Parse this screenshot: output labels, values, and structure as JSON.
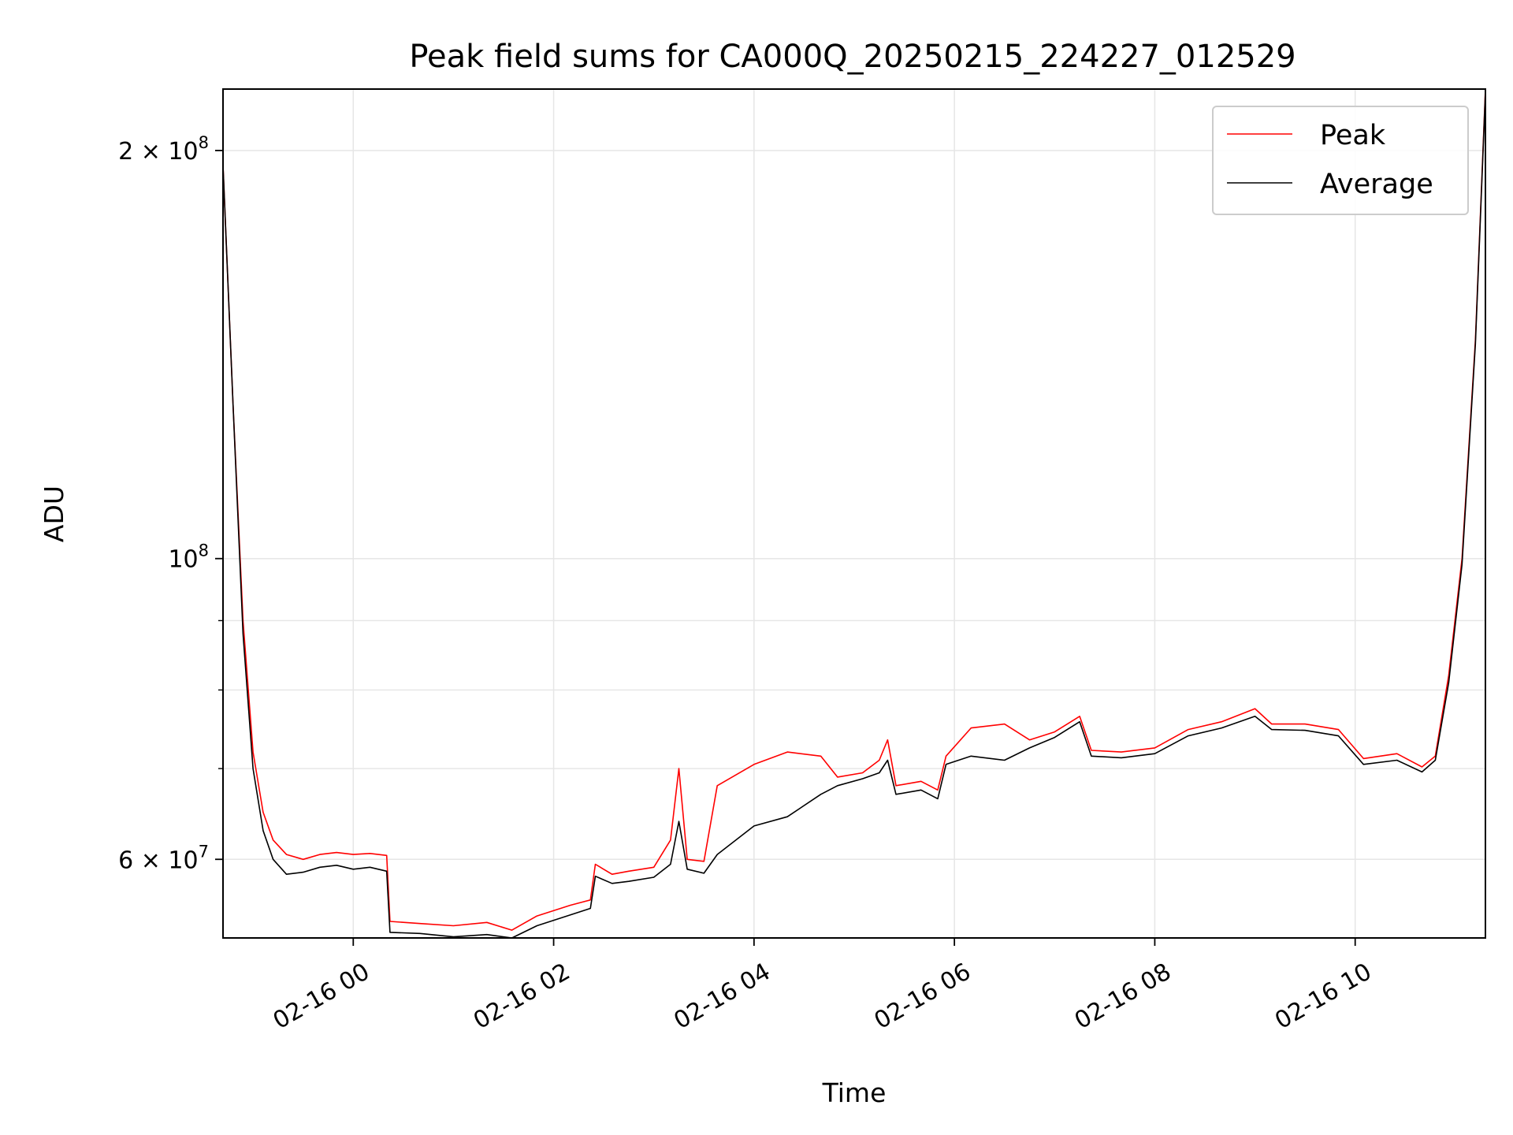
{
  "chart_data": {
    "type": "line",
    "title": "Peak field sums for CA000Q_20250215_224227_012529",
    "xlabel": "Time",
    "ylabel": "ADU",
    "yscale": "log",
    "xlim": [
      "2025-02-15 22:42",
      "2025-02-16 11:18"
    ],
    "ylim": [
      52500000,
      222000000
    ],
    "grid": true,
    "legend": "upper right",
    "x_ticks": [
      {
        "value": "2025-02-16 00:00",
        "label": "02-16 00"
      },
      {
        "value": "2025-02-16 02:00",
        "label": "02-16 02"
      },
      {
        "value": "2025-02-16 04:00",
        "label": "02-16 04"
      },
      {
        "value": "2025-02-16 06:00",
        "label": "02-16 06"
      },
      {
        "value": "2025-02-16 08:00",
        "label": "02-16 08"
      },
      {
        "value": "2025-02-16 10:00",
        "label": "02-16 10"
      }
    ],
    "y_ticks": [
      {
        "value": 200000000,
        "base": "2 × 10",
        "exp": "8"
      },
      {
        "value": 100000000,
        "base": "10",
        "exp": "8"
      },
      {
        "value": 60000000,
        "base": "6 × 10",
        "exp": "7"
      }
    ],
    "y_minor_ticks": [
      70000000,
      80000000,
      90000000
    ],
    "series": [
      {
        "name": "Peak",
        "color": "#ff0000",
        "points": [
          [
            "2025-02-15 22:42",
            195000000
          ],
          [
            "2025-02-15 22:48",
            130000000
          ],
          [
            "2025-02-15 22:54",
            90000000
          ],
          [
            "2025-02-15 23:00",
            72000000
          ],
          [
            "2025-02-15 23:06",
            65000000
          ],
          [
            "2025-02-15 23:12",
            62000000
          ],
          [
            "2025-02-15 23:20",
            60500000
          ],
          [
            "2025-02-15 23:30",
            60000000
          ],
          [
            "2025-02-15 23:40",
            60500000
          ],
          [
            "2025-02-15 23:50",
            60700000
          ],
          [
            "2025-02-16 00:00",
            60500000
          ],
          [
            "2025-02-16 00:10",
            60600000
          ],
          [
            "2025-02-16 00:20",
            60400000
          ],
          [
            "2025-02-16 00:22",
            54000000
          ],
          [
            "2025-02-16 00:40",
            53800000
          ],
          [
            "2025-02-16 01:00",
            53600000
          ],
          [
            "2025-02-16 01:20",
            53900000
          ],
          [
            "2025-02-16 01:35",
            53200000
          ],
          [
            "2025-02-16 01:50",
            54500000
          ],
          [
            "2025-02-16 02:10",
            55500000
          ],
          [
            "2025-02-16 02:22",
            56000000
          ],
          [
            "2025-02-16 02:25",
            59500000
          ],
          [
            "2025-02-16 02:35",
            58500000
          ],
          [
            "2025-02-16 02:45",
            58800000
          ],
          [
            "2025-02-16 03:00",
            59200000
          ],
          [
            "2025-02-16 03:10",
            62000000
          ],
          [
            "2025-02-16 03:15",
            70000000
          ],
          [
            "2025-02-16 03:20",
            60000000
          ],
          [
            "2025-02-16 03:30",
            59800000
          ],
          [
            "2025-02-16 03:38",
            68000000
          ],
          [
            "2025-02-16 04:00",
            70500000
          ],
          [
            "2025-02-16 04:20",
            72000000
          ],
          [
            "2025-02-16 04:40",
            71500000
          ],
          [
            "2025-02-16 04:50",
            69000000
          ],
          [
            "2025-02-16 05:05",
            69500000
          ],
          [
            "2025-02-16 05:15",
            71000000
          ],
          [
            "2025-02-16 05:20",
            73500000
          ],
          [
            "2025-02-16 05:25",
            68000000
          ],
          [
            "2025-02-16 05:40",
            68500000
          ],
          [
            "2025-02-16 05:50",
            67500000
          ],
          [
            "2025-02-16 05:55",
            71500000
          ],
          [
            "2025-02-16 06:10",
            75000000
          ],
          [
            "2025-02-16 06:30",
            75500000
          ],
          [
            "2025-02-16 06:45",
            73500000
          ],
          [
            "2025-02-16 07:00",
            74500000
          ],
          [
            "2025-02-16 07:15",
            76500000
          ],
          [
            "2025-02-16 07:22",
            72200000
          ],
          [
            "2025-02-16 07:40",
            72000000
          ],
          [
            "2025-02-16 08:00",
            72500000
          ],
          [
            "2025-02-16 08:20",
            74800000
          ],
          [
            "2025-02-16 08:40",
            75800000
          ],
          [
            "2025-02-16 09:00",
            77500000
          ],
          [
            "2025-02-16 09:10",
            75500000
          ],
          [
            "2025-02-16 09:30",
            75500000
          ],
          [
            "2025-02-16 09:50",
            74800000
          ],
          [
            "2025-02-16 10:05",
            71200000
          ],
          [
            "2025-02-16 10:25",
            71800000
          ],
          [
            "2025-02-16 10:40",
            70200000
          ],
          [
            "2025-02-16 10:48",
            71500000
          ],
          [
            "2025-02-16 10:56",
            82000000
          ],
          [
            "2025-02-16 11:04",
            100000000
          ],
          [
            "2025-02-16 11:12",
            145000000
          ],
          [
            "2025-02-16 11:18",
            222000000
          ]
        ]
      },
      {
        "name": "Average",
        "color": "#000000",
        "points": [
          [
            "2025-02-15 22:42",
            195000000
          ],
          [
            "2025-02-15 22:48",
            130000000
          ],
          [
            "2025-02-15 22:54",
            88000000
          ],
          [
            "2025-02-15 23:00",
            70000000
          ],
          [
            "2025-02-15 23:06",
            63000000
          ],
          [
            "2025-02-15 23:12",
            60000000
          ],
          [
            "2025-02-15 23:20",
            58500000
          ],
          [
            "2025-02-15 23:30",
            58700000
          ],
          [
            "2025-02-15 23:40",
            59200000
          ],
          [
            "2025-02-15 23:50",
            59400000
          ],
          [
            "2025-02-16 00:00",
            59000000
          ],
          [
            "2025-02-16 00:10",
            59200000
          ],
          [
            "2025-02-16 00:20",
            58800000
          ],
          [
            "2025-02-16 00:22",
            53000000
          ],
          [
            "2025-02-16 00:40",
            52900000
          ],
          [
            "2025-02-16 01:00",
            52600000
          ],
          [
            "2025-02-16 01:20",
            52800000
          ],
          [
            "2025-02-16 01:35",
            52500000
          ],
          [
            "2025-02-16 01:50",
            53600000
          ],
          [
            "2025-02-16 02:10",
            54600000
          ],
          [
            "2025-02-16 02:22",
            55200000
          ],
          [
            "2025-02-16 02:25",
            58300000
          ],
          [
            "2025-02-16 02:35",
            57600000
          ],
          [
            "2025-02-16 02:45",
            57800000
          ],
          [
            "2025-02-16 03:00",
            58200000
          ],
          [
            "2025-02-16 03:10",
            59500000
          ],
          [
            "2025-02-16 03:15",
            64000000
          ],
          [
            "2025-02-16 03:20",
            59000000
          ],
          [
            "2025-02-16 03:30",
            58600000
          ],
          [
            "2025-02-16 03:38",
            60500000
          ],
          [
            "2025-02-16 04:00",
            63500000
          ],
          [
            "2025-02-16 04:20",
            64500000
          ],
          [
            "2025-02-16 04:40",
            67000000
          ],
          [
            "2025-02-16 04:50",
            68000000
          ],
          [
            "2025-02-16 05:05",
            68800000
          ],
          [
            "2025-02-16 05:15",
            69500000
          ],
          [
            "2025-02-16 05:20",
            71000000
          ],
          [
            "2025-02-16 05:25",
            67000000
          ],
          [
            "2025-02-16 05:40",
            67500000
          ],
          [
            "2025-02-16 05:50",
            66500000
          ],
          [
            "2025-02-16 05:55",
            70500000
          ],
          [
            "2025-02-16 06:10",
            71500000
          ],
          [
            "2025-02-16 06:30",
            71000000
          ],
          [
            "2025-02-16 06:45",
            72500000
          ],
          [
            "2025-02-16 07:00",
            73800000
          ],
          [
            "2025-02-16 07:15",
            75800000
          ],
          [
            "2025-02-16 07:22",
            71500000
          ],
          [
            "2025-02-16 07:40",
            71300000
          ],
          [
            "2025-02-16 08:00",
            71800000
          ],
          [
            "2025-02-16 08:20",
            74000000
          ],
          [
            "2025-02-16 08:40",
            75000000
          ],
          [
            "2025-02-16 09:00",
            76500000
          ],
          [
            "2025-02-16 09:10",
            74800000
          ],
          [
            "2025-02-16 09:30",
            74700000
          ],
          [
            "2025-02-16 09:50",
            74000000
          ],
          [
            "2025-02-16 10:05",
            70500000
          ],
          [
            "2025-02-16 10:25",
            71000000
          ],
          [
            "2025-02-16 10:40",
            69600000
          ],
          [
            "2025-02-16 10:48",
            71000000
          ],
          [
            "2025-02-16 10:56",
            81000000
          ],
          [
            "2025-02-16 11:04",
            99000000
          ],
          [
            "2025-02-16 11:12",
            144000000
          ],
          [
            "2025-02-16 11:18",
            221000000
          ]
        ]
      }
    ]
  }
}
